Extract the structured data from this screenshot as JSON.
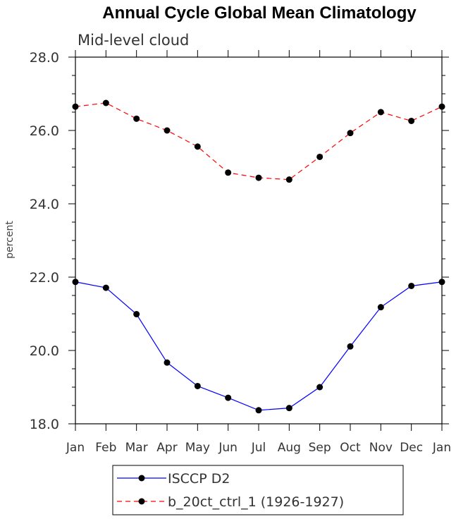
{
  "chart_data": {
    "type": "line",
    "title": "Annual Cycle Global Mean Climatology",
    "subtitle": "Mid-level cloud",
    "ylabel": "percent",
    "xlabel": "",
    "categories": [
      "Jan",
      "Feb",
      "Mar",
      "Apr",
      "May",
      "Jun",
      "Jul",
      "Aug",
      "Sep",
      "Oct",
      "Nov",
      "Dec",
      "Jan"
    ],
    "ylim": [
      18.0,
      28.0
    ],
    "yticks": [
      "18.0",
      "20.0",
      "22.0",
      "24.0",
      "26.0",
      "28.0"
    ],
    "grid": false,
    "series": [
      {
        "name": "ISCCP D2",
        "color": "#0000ff",
        "dash": "solid",
        "values": [
          21.87,
          21.71,
          20.99,
          19.67,
          19.03,
          18.71,
          18.37,
          18.43,
          19.0,
          20.11,
          21.18,
          21.76,
          21.87
        ]
      },
      {
        "name": "b_20ct_ctrl_1 (1926-1927)",
        "color": "#ff0000",
        "dash": "dashed",
        "values": [
          26.65,
          26.75,
          26.32,
          26.0,
          25.56,
          24.85,
          24.71,
          24.66,
          25.28,
          25.93,
          26.5,
          26.26,
          26.65
        ]
      }
    ],
    "legend": {
      "position": "bottom-center"
    }
  }
}
